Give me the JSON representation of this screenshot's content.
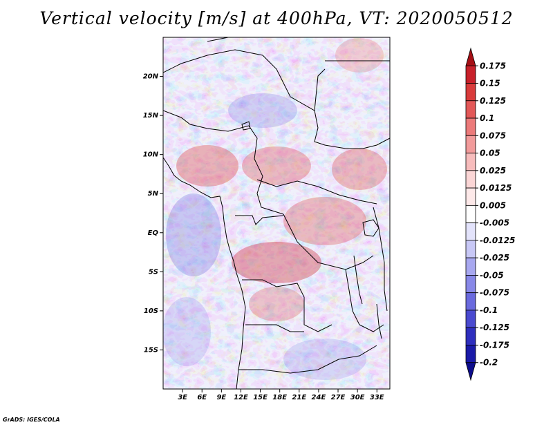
{
  "title": "Vertical velocity [m/s] at 400hPa, VT: 2020050512",
  "credit": "GrADS: IGES/COLA",
  "map": {
    "lon_range": [
      0,
      35
    ],
    "lat_range": [
      -20,
      25
    ],
    "lat_ticks": [
      {
        "value": 20,
        "label": "20N"
      },
      {
        "value": 15,
        "label": "15N"
      },
      {
        "value": 10,
        "label": "10N"
      },
      {
        "value": 5,
        "label": "5N"
      },
      {
        "value": 0,
        "label": "EQ"
      },
      {
        "value": -5,
        "label": "5S"
      },
      {
        "value": -10,
        "label": "10S"
      },
      {
        "value": -15,
        "label": "15S"
      }
    ],
    "lon_ticks": [
      {
        "value": 3,
        "label": "3E"
      },
      {
        "value": 6,
        "label": "6E"
      },
      {
        "value": 9,
        "label": "9E"
      },
      {
        "value": 12,
        "label": "12E"
      },
      {
        "value": 15,
        "label": "15E"
      },
      {
        "value": 18,
        "label": "18E"
      },
      {
        "value": 21,
        "label": "21E"
      },
      {
        "value": 24,
        "label": "24E"
      },
      {
        "value": 27,
        "label": "27E"
      },
      {
        "value": 30,
        "label": "30E"
      },
      {
        "value": 33,
        "label": "33E"
      }
    ]
  },
  "colorbar": {
    "labels": [
      "0.175",
      "0.15",
      "0.125",
      "0.1",
      "0.075",
      "0.05",
      "0.025",
      "0.0125",
      "0.005",
      "-0.005",
      "-0.0125",
      "-0.025",
      "-0.05",
      "-0.075",
      "-0.1",
      "-0.125",
      "-0.175",
      "-0.2"
    ],
    "colors": [
      "#a50f15",
      "#c8202a",
      "#d93b3b",
      "#e35858",
      "#ec7a7a",
      "#f29b9b",
      "#f7bcbc",
      "#fbd6d6",
      "#fde9e9",
      "#ffffff",
      "#e3e3fb",
      "#c8c8f6",
      "#a8a8f0",
      "#8888e8",
      "#6a6ade",
      "#4a4ad0",
      "#2e2ebe",
      "#1a1aa8",
      "#0d0d8c"
    ]
  }
}
